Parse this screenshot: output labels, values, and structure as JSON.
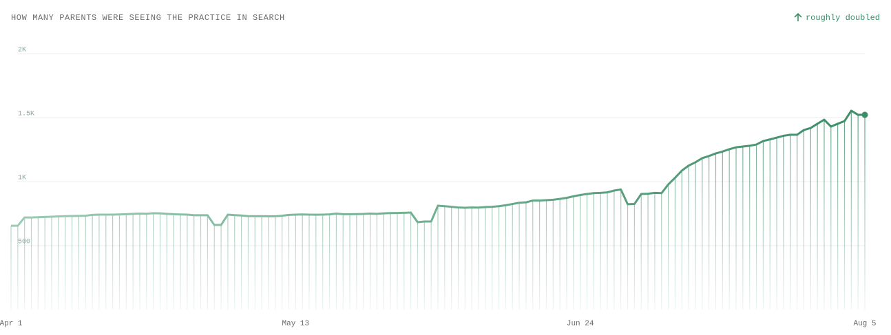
{
  "chart_data": {
    "type": "line",
    "title": "HOW MANY PARENTS WERE SEEING THE PRACTICE IN SEARCH",
    "annotation": "roughly doubled",
    "x": [
      0,
      1,
      2,
      3,
      4,
      5,
      6,
      7,
      8,
      9,
      10,
      11,
      12,
      13,
      14,
      15,
      16,
      17,
      18,
      19,
      20,
      21,
      22,
      23,
      24,
      25,
      26,
      27,
      28,
      29,
      30,
      31,
      32,
      33,
      34,
      35,
      36,
      37,
      38,
      39,
      40,
      41,
      42,
      43,
      44,
      45,
      46,
      47,
      48,
      49,
      50,
      51,
      52,
      53,
      54,
      55,
      56,
      57,
      58,
      59,
      60,
      61,
      62,
      63,
      64,
      65,
      66,
      67,
      68,
      69,
      70,
      71,
      72,
      73,
      74,
      75,
      76,
      77,
      78,
      79,
      80,
      81,
      82,
      83,
      84,
      85,
      86,
      87,
      88,
      89,
      90,
      91,
      92,
      93,
      94,
      95,
      96,
      97,
      98,
      99,
      100,
      101,
      102,
      103,
      104,
      105,
      106,
      107,
      108,
      109,
      110,
      111,
      112,
      113,
      114,
      115,
      116,
      117,
      118,
      119,
      120,
      121,
      122,
      123,
      124,
      125,
      126
    ],
    "values": [
      655,
      655,
      720,
      720,
      722,
      724,
      726,
      728,
      730,
      731,
      732,
      733,
      740,
      742,
      742,
      742,
      743,
      745,
      748,
      750,
      749,
      753,
      752,
      748,
      745,
      743,
      742,
      737,
      737,
      737,
      661,
      661,
      742,
      738,
      735,
      730,
      730,
      730,
      729,
      729,
      733,
      740,
      742,
      743,
      742,
      741,
      742,
      744,
      750,
      745,
      745,
      746,
      747,
      750,
      748,
      752,
      754,
      755,
      756,
      758,
      683,
      688,
      688,
      812,
      808,
      803,
      798,
      796,
      798,
      797,
      801,
      803,
      808,
      815,
      825,
      835,
      838,
      852,
      852,
      855,
      858,
      865,
      873,
      885,
      895,
      903,
      910,
      912,
      916,
      930,
      938,
      823,
      825,
      903,
      905,
      912,
      910,
      978,
      1030,
      1086,
      1125,
      1151,
      1183,
      1200,
      1220,
      1235,
      1253,
      1268,
      1274,
      1280,
      1290,
      1317,
      1330,
      1344,
      1358,
      1366,
      1366,
      1403,
      1419,
      1452,
      1484,
      1430,
      1452,
      1473,
      1554,
      1522,
      1522
    ],
    "color": "#3d8c68",
    "xlim": [
      0,
      126
    ],
    "xticks": [
      {
        "value": 0,
        "label": "Apr 1"
      },
      {
        "value": 42,
        "label": "May 13"
      },
      {
        "value": 84,
        "label": "Jun 24"
      },
      {
        "value": 126,
        "label": "Aug 5"
      }
    ],
    "ylim": [
      0,
      2000
    ],
    "yticks": [
      500,
      {
        "value": 1000,
        "label": "1K"
      },
      {
        "value": 1500,
        "label": "1.5K"
      },
      {
        "value": 2000,
        "label": "2K"
      }
    ],
    "grid": true
  }
}
